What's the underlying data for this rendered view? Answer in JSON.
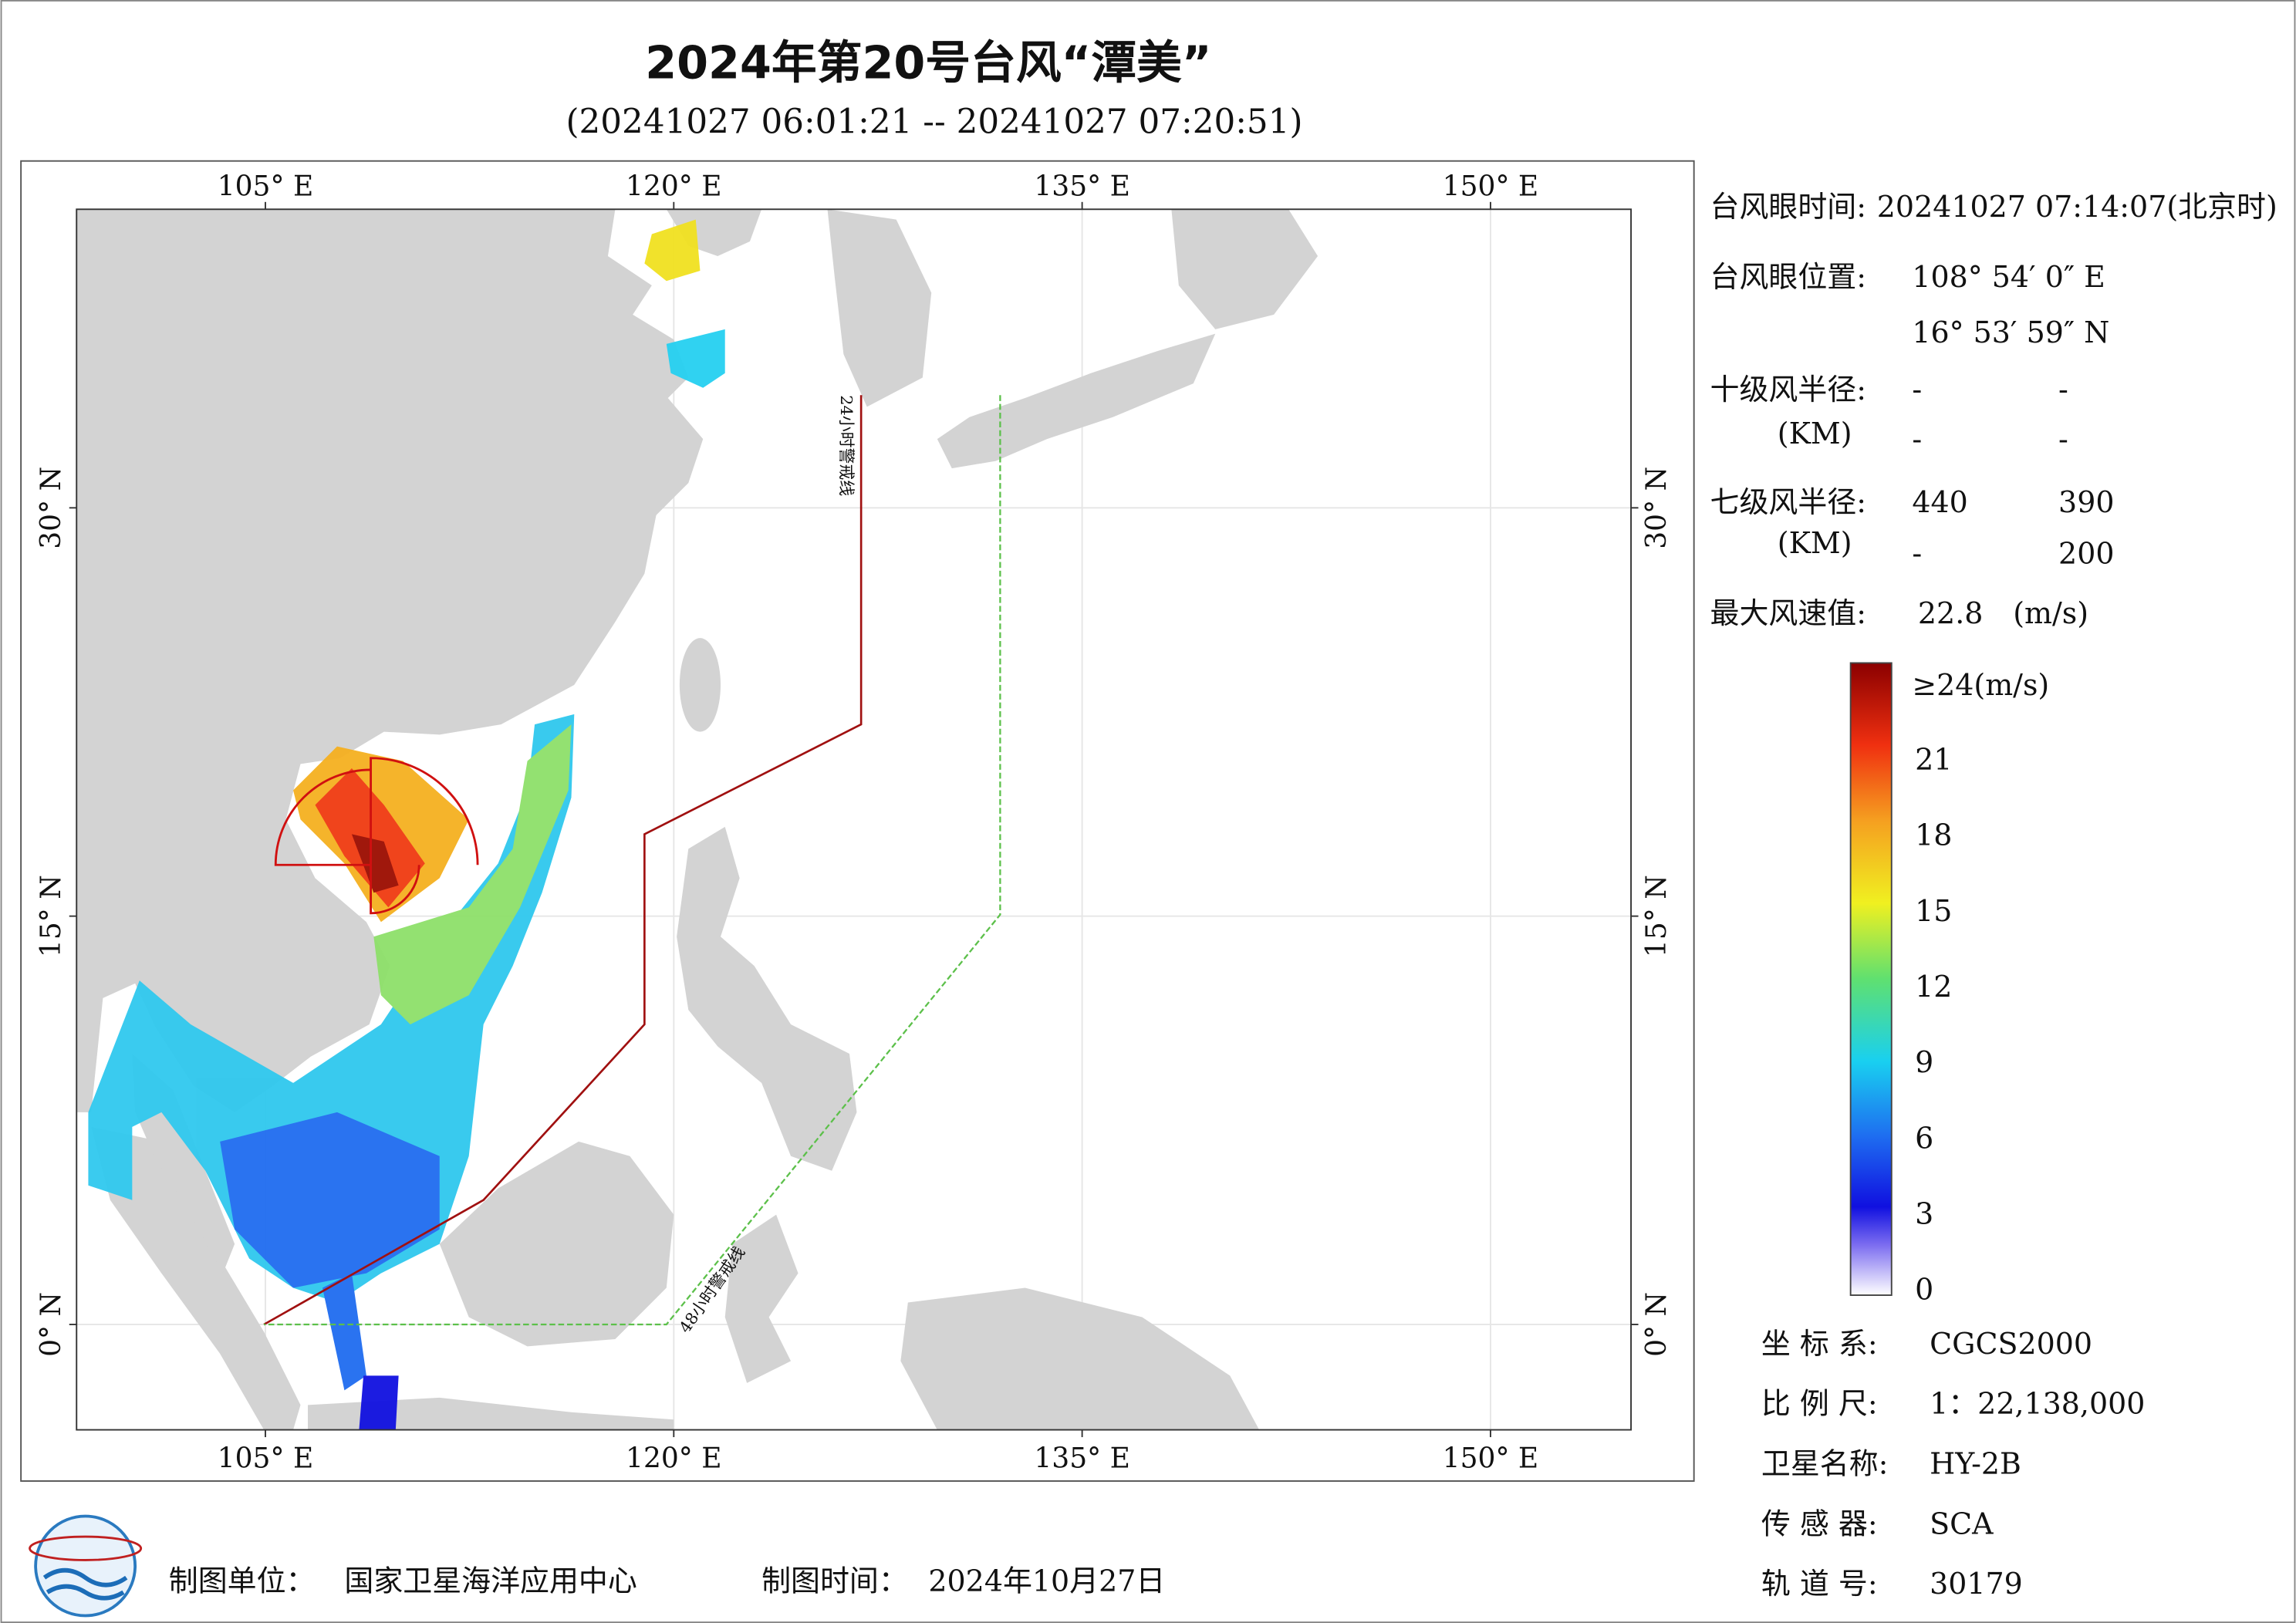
{
  "header": {
    "title": "2024年第20号台风“潭美”",
    "subtitle": "(20241027 06:01:21 -- 20241027 07:20:51)"
  },
  "map": {
    "lon_ticks": [
      {
        "value": 105,
        "label": "105° E"
      },
      {
        "value": 120,
        "label": "120° E"
      },
      {
        "value": 135,
        "label": "135° E"
      },
      {
        "value": 150,
        "label": "150° E"
      }
    ],
    "lat_ticks": [
      {
        "value": 0,
        "label": "0° N"
      },
      {
        "value": 15,
        "label": "15° N"
      },
      {
        "value": 30,
        "label": "30° N"
      }
    ],
    "warning_lines": [
      "24小时警戒线",
      "48小时警戒线"
    ]
  },
  "info": {
    "eye_time": {
      "label": "台风眼时间:",
      "value": "20241027 07:14:07(北京时)"
    },
    "eye_position": {
      "label": "台风眼位置:",
      "lon": "108° 54′ 0″ E",
      "lat": "16° 53′ 59″ N"
    },
    "radius_10": {
      "label": "十级风半径:",
      "unit": "(KM)",
      "values": [
        "-",
        "-",
        "-",
        "-"
      ]
    },
    "radius_7": {
      "label": "七级风半径:",
      "unit": "(KM)",
      "values": [
        440,
        390,
        "-",
        200
      ]
    },
    "max_wind": {
      "label": "最大风速值:",
      "value": 22.8,
      "unit": "(m/s)"
    }
  },
  "colorbar": {
    "top_label": "≥24(m/s)",
    "ticks": [
      21,
      18,
      15,
      12,
      9,
      6,
      3,
      0
    ]
  },
  "meta": [
    {
      "label": "坐 标 系:",
      "value": "CGCS2000"
    },
    {
      "label": "比 例 尺:",
      "value": "1：22,138,000"
    },
    {
      "label": "卫星名称:",
      "value": "HY-2B"
    },
    {
      "label": "传 感 器:",
      "value": "SCA"
    },
    {
      "label": "轨 道 号:",
      "value": 30179
    }
  ],
  "footer": {
    "org_label": "制图单位：",
    "org": "国家卫星海洋应用中心",
    "date_label": "制图时间：",
    "date": "2024年10月27日"
  }
}
